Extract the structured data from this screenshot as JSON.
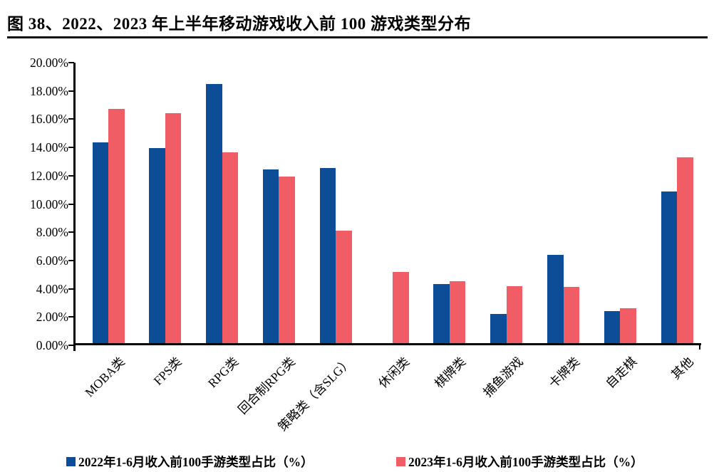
{
  "header": {
    "title": "图 38、2022、2023 年上半年移动游戏收入前 100 游戏类型分布"
  },
  "chart_data": {
    "type": "bar",
    "title": "2022、2023 年上半年移动游戏收入前 100 游戏类型分布",
    "categories": [
      "MOBA类",
      "FPS类",
      "RPG类",
      "回合制RPG类",
      "策略类（含SLG）",
      "休闲类",
      "棋牌类",
      "捕鱼游戏",
      "卡牌类",
      "自走棋",
      "其他"
    ],
    "series": [
      {
        "key": "2022",
        "name": "2022年1-6月收入前100手游类型占比（%）",
        "color": "#0D4C96",
        "values": [
          14.3,
          13.9,
          18.5,
          12.4,
          12.5,
          0,
          4.2,
          2.1,
          6.3,
          2.3,
          10.8
        ]
      },
      {
        "key": "2023",
        "name": "2023年1-6月收入前100手游类型占比（%）",
        "color": "#F05D64",
        "values": [
          16.7,
          16.4,
          13.6,
          11.9,
          8.0,
          5.1,
          4.4,
          4.05,
          4.0,
          2.5,
          13.25
        ]
      }
    ],
    "xlabel": "",
    "ylabel": "",
    "ylim": [
      0,
      20
    ],
    "ytick_step": 2,
    "ytick_labels_top_to_bottom": [
      "20.00%",
      "18.00%",
      "16.00%",
      "14.00%",
      "12.00%",
      "10.00%",
      "8.00%",
      "6.00%",
      "4.00%",
      "2.00%",
      "0.00%"
    ],
    "grid": false,
    "legend_position": "bottom",
    "axis_color": "#000000"
  }
}
